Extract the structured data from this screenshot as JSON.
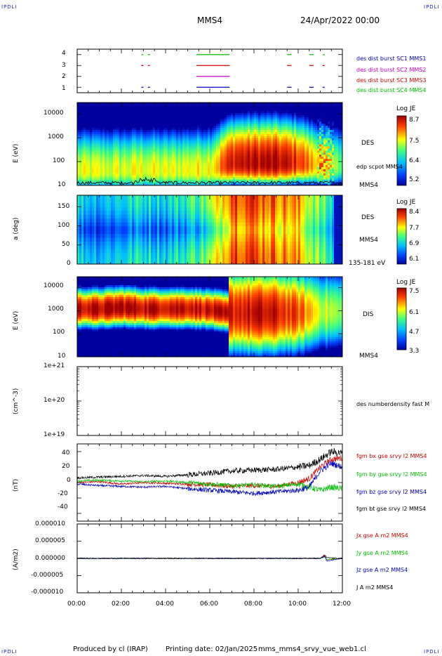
{
  "header": {
    "corner_tl": "IPDLI",
    "corner_tr": "IPDLI",
    "corner_bl": "IPDLI",
    "corner_br": "IPDLI",
    "spacecraft": "MMS4",
    "date": "24/Apr/2022 00:00"
  },
  "footer": {
    "produced": "Produced by cl (IRAP)",
    "printing": "Printing date: 02/Jan/2025",
    "file": "mms_mms4_srvy_vue_web1.cl"
  },
  "colors": {
    "green": "#00c000",
    "red": "#d00000",
    "magenta": "#d000d0",
    "blue": "#0000c0",
    "black": "#000000"
  },
  "panels": {
    "burst": {
      "yticks": [
        "4",
        "3",
        "2",
        "1"
      ],
      "legend": [
        "des dist burst SC1 MMS1",
        "des dist burst SC2 MMS2",
        "des dist burst SC3 MMS3",
        "des dist burst SC4 MMS4"
      ]
    },
    "des_energy": {
      "ylabel": "E (eV)",
      "yticks": [
        "10000",
        "1000",
        "100",
        "10"
      ],
      "name": "DES",
      "overlay": "edp scpot MMS4",
      "sc": "MMS4",
      "cbar_title": "Log JE",
      "cbar_ticks": [
        "8.7",
        "7.5",
        "6.4",
        "5.2"
      ]
    },
    "des_pitch": {
      "ylabel": "a (deg)",
      "yticks": [
        "150",
        "100",
        "50",
        "0"
      ],
      "name": "DES",
      "sc": "MMS4",
      "range": "135-181 eV",
      "cbar_title": "Log JE",
      "cbar_ticks": [
        "8.4",
        "7.7",
        "6.9",
        "6.1"
      ]
    },
    "dis_energy": {
      "ylabel": "E (eV)",
      "yticks": [
        "10000",
        "1000",
        "100",
        "10"
      ],
      "name": "DIS",
      "sc": "MMS4",
      "cbar_title": "Log JE",
      "cbar_ticks": [
        "7.5",
        "6.1",
        "4.7",
        "3.3"
      ]
    },
    "density": {
      "ylabel": "(cm^-3)",
      "yticks": [
        "1e+21",
        "1e+20",
        "1e+19"
      ],
      "legend": "des numberdensity fast M"
    },
    "bfield": {
      "ylabel": "(nT)",
      "yticks": [
        "40",
        "20",
        "0",
        "-20",
        "-40"
      ],
      "legend": [
        "fgm bx gse srvy l2 MMS4",
        "fgm by gse srvy l2 MMS4",
        "fgm bz gse srvy l2 MMS4",
        "fgm bt gse srvy l2 MMS4"
      ]
    },
    "current": {
      "ylabel": "(A/m2)",
      "yticks": [
        "0.000010",
        "0.000005",
        "0.000000",
        "-0.000005",
        "-0.000010"
      ],
      "legend": [
        "Jx gse A m2 MMS4",
        "Jy gse A m2 MMS4",
        "Jz gse A m2 MMS4",
        "J A m2 MMS4"
      ]
    }
  },
  "xaxis": {
    "ticks": [
      "00:00",
      "02:00",
      "04:00",
      "06:00",
      "08:00",
      "10:00",
      "12:00"
    ]
  },
  "chart_data": [
    {
      "type": "line",
      "panel": "burst",
      "x_range_hours": [
        0,
        12
      ],
      "ylim": [
        0.5,
        4.5
      ],
      "series": [
        {
          "name": "des dist burst SC1 MMS1",
          "y": 1,
          "intervals_hours": [
            [
              2.9,
              3.0
            ],
            [
              3.2,
              3.3
            ],
            [
              5.4,
              6.9
            ],
            [
              9.5,
              9.7
            ],
            [
              10.5,
              10.7
            ],
            [
              11.1,
              11.2
            ]
          ]
        },
        {
          "name": "des dist burst SC2 MMS2",
          "y": 2,
          "intervals_hours": [
            [
              5.4,
              6.9
            ]
          ]
        },
        {
          "name": "des dist burst SC3 MMS3",
          "y": 3,
          "intervals_hours": [
            [
              2.9,
              3.0
            ],
            [
              3.2,
              3.3
            ],
            [
              5.4,
              6.9
            ],
            [
              9.5,
              9.7
            ],
            [
              10.5,
              10.7
            ],
            [
              11.1,
              11.2
            ]
          ]
        },
        {
          "name": "des dist burst SC4 MMS4",
          "y": 4,
          "intervals_hours": [
            [
              2.9,
              3.0
            ],
            [
              3.2,
              3.3
            ],
            [
              5.4,
              6.9
            ],
            [
              9.5,
              9.7
            ],
            [
              10.5,
              10.7
            ],
            [
              11.1,
              11.2
            ]
          ]
        }
      ]
    },
    {
      "type": "heatmap",
      "panel": "des_energy",
      "yscale": "log",
      "ylim": [
        10,
        30000
      ],
      "colorbar": [
        5.2,
        8.7
      ],
      "time_hours": [
        0,
        1,
        2,
        3,
        4,
        5,
        6,
        7,
        8,
        9,
        10,
        11,
        12
      ],
      "peak_energy_eV": [
        40,
        40,
        40,
        40,
        40,
        40,
        40,
        80,
        80,
        80,
        80,
        60,
        60
      ],
      "peak_logje": [
        7.4,
        7.4,
        7.4,
        7.5,
        7.4,
        7.5,
        7.6,
        8.5,
        8.6,
        8.6,
        8.3,
        7.5,
        7.0
      ]
    },
    {
      "type": "heatmap",
      "panel": "des_pitch",
      "ylim": [
        0,
        180
      ],
      "colorbar": [
        6.1,
        8.4
      ],
      "time_hours": [
        0,
        1,
        2,
        3,
        4,
        5,
        6,
        7,
        8,
        9,
        10,
        11,
        12
      ],
      "logje_perp": [
        6.5,
        6.4,
        6.5,
        6.6,
        6.5,
        6.7,
        6.9,
        7.9,
        7.8,
        7.7,
        7.6,
        7.0,
        6.5
      ],
      "logje_par": [
        7.0,
        6.9,
        7.0,
        7.1,
        7.0,
        7.2,
        7.4,
        8.2,
        8.1,
        8.0,
        7.8,
        7.3,
        6.8
      ]
    },
    {
      "type": "heatmap",
      "panel": "dis_energy",
      "yscale": "log",
      "ylim": [
        10,
        30000
      ],
      "colorbar": [
        3.3,
        7.5
      ],
      "time_hours": [
        0,
        1,
        2,
        3,
        4,
        5,
        6,
        7,
        8,
        9,
        10,
        11,
        12
      ],
      "peak_energy_eV": [
        1200,
        1200,
        1400,
        1200,
        1200,
        1200,
        1100,
        800,
        800,
        800,
        800,
        900,
        1000
      ],
      "peak_logje": [
        7.4,
        7.4,
        7.5,
        7.4,
        7.4,
        7.4,
        7.3,
        7.2,
        7.3,
        7.2,
        6.8,
        6.0,
        5.5
      ]
    },
    {
      "type": "line",
      "panel": "bfield",
      "ylim": [
        -50,
        50
      ],
      "time_hours": [
        0,
        1,
        2,
        3,
        4,
        5,
        6,
        7,
        8,
        9,
        10,
        10.5,
        11,
        11.5,
        12
      ],
      "series": [
        {
          "name": "fgm bx gse srvy l2 MMS4",
          "values": [
            0,
            1,
            -2,
            0,
            -1,
            -2,
            -3,
            -5,
            -4,
            -5,
            0,
            5,
            20,
            30,
            32
          ]
        },
        {
          "name": "fgm by gse srvy l2 MMS4",
          "values": [
            2,
            3,
            2,
            1,
            2,
            0,
            -2,
            -4,
            -3,
            -5,
            -2,
            -6,
            -10,
            -6,
            -8
          ]
        },
        {
          "name": "fgm bz gse srvy l2 MMS4",
          "values": [
            -2,
            -4,
            -5,
            -6,
            -5,
            -8,
            -10,
            -12,
            -14,
            -12,
            -10,
            -6,
            15,
            25,
            20
          ]
        },
        {
          "name": "fgm bt gse srvy l2 MMS4",
          "values": [
            6,
            7,
            8,
            9,
            8,
            10,
            12,
            15,
            16,
            17,
            20,
            22,
            30,
            40,
            38
          ]
        }
      ]
    },
    {
      "type": "line",
      "panel": "current",
      "ylim": [
        -1e-05,
        1e-05
      ],
      "time_hours": [
        0,
        2,
        4,
        6,
        8,
        10,
        11,
        11.2,
        11.3,
        12
      ],
      "series": [
        {
          "name": "Jx gse A m2 MMS4",
          "values": [
            0,
            0,
            0,
            0,
            0,
            0,
            0,
            8e-07,
            -4e-07,
            0
          ]
        },
        {
          "name": "Jy gse A m2 MMS4",
          "values": [
            0,
            0,
            0,
            0,
            0,
            0,
            0,
            4e-07,
            -3e-07,
            0
          ]
        },
        {
          "name": "Jz gse A m2 MMS4",
          "values": [
            0,
            0,
            0,
            0,
            0,
            0,
            0,
            6e-07,
            -8e-07,
            0
          ]
        },
        {
          "name": "J A m2 MMS4",
          "values": [
            0,
            0,
            0,
            0,
            0,
            0,
            0,
            1e-06,
            2e-07,
            0
          ]
        }
      ]
    }
  ]
}
